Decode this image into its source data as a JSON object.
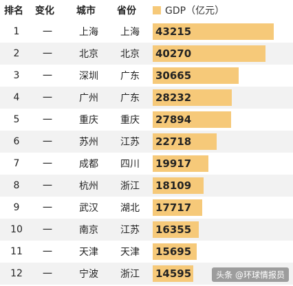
{
  "header": {
    "rank": "排名",
    "change": "变化",
    "city": "城市",
    "province": "省份"
  },
  "watermark": "头条 @环球情报员",
  "colors": {
    "bar": "#f6c979",
    "alt_row": "#f2f2f2"
  },
  "chart_data": {
    "type": "bar",
    "orientation": "horizontal",
    "series": [
      {
        "name": "GDP（亿元）",
        "values": [
          43215,
          40270,
          30665,
          28232,
          27894,
          22718,
          19917,
          18109,
          17717,
          16355,
          15695,
          14595
        ]
      }
    ],
    "rows": [
      {
        "rank": "1",
        "change": "一",
        "city": "上海",
        "province": "上海",
        "gdp": 43215
      },
      {
        "rank": "2",
        "change": "一",
        "city": "北京",
        "province": "北京",
        "gdp": 40270
      },
      {
        "rank": "3",
        "change": "一",
        "city": "深圳",
        "province": "广东",
        "gdp": 30665
      },
      {
        "rank": "4",
        "change": "一",
        "city": "广州",
        "province": "广东",
        "gdp": 28232
      },
      {
        "rank": "5",
        "change": "一",
        "city": "重庆",
        "province": "重庆",
        "gdp": 27894
      },
      {
        "rank": "6",
        "change": "一",
        "city": "苏州",
        "province": "江苏",
        "gdp": 22718
      },
      {
        "rank": "7",
        "change": "一",
        "city": "成都",
        "province": "四川",
        "gdp": 19917
      },
      {
        "rank": "8",
        "change": "一",
        "city": "杭州",
        "province": "浙江",
        "gdp": 18109
      },
      {
        "rank": "9",
        "change": "一",
        "city": "武汉",
        "province": "湖北",
        "gdp": 17717
      },
      {
        "rank": "10",
        "change": "一",
        "city": "南京",
        "province": "江苏",
        "gdp": 16355
      },
      {
        "rank": "11",
        "change": "一",
        "city": "天津",
        "province": "天津",
        "gdp": 15695
      },
      {
        "rank": "12",
        "change": "一",
        "city": "宁波",
        "province": "浙江",
        "gdp": 14595
      }
    ],
    "xlim": [
      0,
      43215
    ]
  }
}
